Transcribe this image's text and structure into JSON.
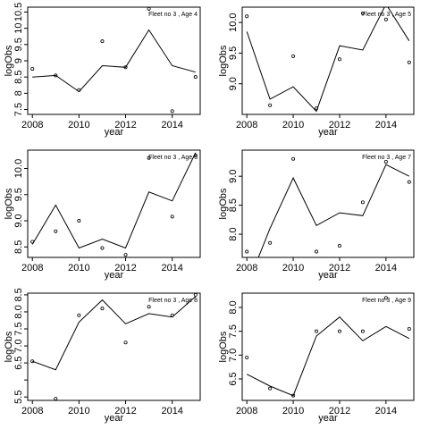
{
  "chart_data": [
    {
      "type": "scatter",
      "title": "Fleet no 3 , Age 4",
      "xlabel": "year",
      "ylabel": "logObs",
      "xlim": [
        2007.8,
        2015.2
      ],
      "ylim": [
        7.35,
        10.65
      ],
      "x_ticks": [
        2008,
        2010,
        2012,
        2014
      ],
      "y_ticks": [
        7.5,
        8.0,
        8.5,
        9.0,
        9.5,
        10.0,
        10.5
      ],
      "y_tick_labels": [
        "7.5",
        "8",
        "8.5",
        "9",
        "9.5",
        "10",
        "10.5"
      ],
      "series": [
        {
          "type": "line",
          "x": [
            2008,
            2009,
            2010,
            2011,
            2012,
            2013,
            2014,
            2015
          ],
          "y": [
            8.5,
            8.55,
            8.05,
            8.85,
            8.8,
            9.95,
            8.85,
            8.65
          ]
        },
        {
          "type": "scatter",
          "x": [
            2008,
            2009,
            2010,
            2011,
            2012,
            2013,
            2014,
            2015
          ],
          "y": [
            8.75,
            8.55,
            8.1,
            9.6,
            8.8,
            10.6,
            7.45,
            8.5
          ]
        }
      ]
    },
    {
      "type": "scatter",
      "title": "Fleet no 3 , Age 5",
      "xlabel": "year",
      "ylabel": "logObs",
      "xlim": [
        2007.8,
        2015.2
      ],
      "ylim": [
        8.5,
        10.25
      ],
      "x_ticks": [
        2008,
        2010,
        2012,
        2014
      ],
      "y_ticks": [
        9.0,
        9.5,
        10.0
      ],
      "y_tick_labels": [
        "9.0",
        "9.5",
        "10.0"
      ],
      "series": [
        {
          "type": "line",
          "x": [
            2008,
            2009,
            2010,
            2011,
            2012,
            2013,
            2014,
            2015
          ],
          "y": [
            9.85,
            8.75,
            8.95,
            8.55,
            9.62,
            9.55,
            10.3,
            9.7
          ]
        },
        {
          "type": "scatter",
          "x": [
            2008,
            2009,
            2010,
            2011,
            2012,
            2013,
            2014,
            2015
          ],
          "y": [
            10.1,
            8.65,
            9.45,
            8.6,
            9.4,
            10.15,
            10.05,
            9.35
          ]
        }
      ]
    },
    {
      "type": "scatter",
      "title": "Fleet no 3 , Age 6",
      "xlabel": "year",
      "ylabel": "logObs",
      "xlim": [
        2007.8,
        2015.2
      ],
      "ylim": [
        8.3,
        10.35
      ],
      "x_ticks": [
        2008,
        2010,
        2012,
        2014
      ],
      "y_ticks": [
        8.5,
        9.0,
        9.5,
        10.0
      ],
      "y_tick_labels": [
        "8.5",
        "9.0",
        "9.5",
        "10.0"
      ],
      "series": [
        {
          "type": "line",
          "x": [
            2008,
            2009,
            2010,
            2011,
            2012,
            2013,
            2014,
            2015
          ],
          "y": [
            8.55,
            9.3,
            8.48,
            8.65,
            8.48,
            9.55,
            9.38,
            10.3
          ]
        },
        {
          "type": "scatter",
          "x": [
            2008,
            2009,
            2010,
            2011,
            2012,
            2013,
            2014,
            2015
          ],
          "y": [
            8.6,
            8.8,
            9.0,
            8.48,
            8.35,
            10.2,
            9.08,
            10.25
          ]
        }
      ]
    },
    {
      "type": "scatter",
      "title": "Fleet no 3 , Age 7",
      "xlabel": "year",
      "ylabel": "logObs",
      "xlim": [
        2007.8,
        2015.2
      ],
      "ylim": [
        7.6,
        9.45
      ],
      "x_ticks": [
        2008,
        2010,
        2012,
        2014
      ],
      "y_ticks": [
        8.0,
        8.5,
        9.0
      ],
      "y_tick_labels": [
        "8.0",
        "8.5",
        "9.0"
      ],
      "series": [
        {
          "type": "line",
          "x": [
            2008,
            2009,
            2010,
            2011,
            2012,
            2013,
            2014,
            2015
          ],
          "y": [
            7.1,
            8.1,
            8.97,
            8.15,
            8.37,
            8.32,
            9.2,
            9.0
          ]
        },
        {
          "type": "scatter",
          "x": [
            2008,
            2009,
            2010,
            2011,
            2012,
            2013,
            2014,
            2015
          ],
          "y": [
            7.7,
            7.85,
            9.3,
            7.7,
            7.8,
            8.55,
            9.25,
            8.9
          ]
        }
      ]
    },
    {
      "type": "scatter",
      "title": "Fleet no 3 , Age 8",
      "xlabel": "year",
      "ylabel": "logObs",
      "xlim": [
        2007.8,
        2015.2
      ],
      "ylim": [
        5.4,
        8.55
      ],
      "x_ticks": [
        2008,
        2010,
        2012,
        2014
      ],
      "y_ticks": [
        5.5,
        6.0,
        6.5,
        7.0,
        7.5,
        8.0,
        8.5
      ],
      "y_tick_labels": [
        "5.5",
        "",
        "6.5",
        "7.0",
        "7.5",
        "8.0",
        "8.5"
      ],
      "series": [
        {
          "type": "line",
          "x": [
            2008,
            2009,
            2010,
            2011,
            2012,
            2013,
            2014,
            2015
          ],
          "y": [
            6.55,
            6.3,
            7.7,
            8.35,
            7.65,
            7.95,
            7.85,
            8.45
          ]
        },
        {
          "type": "scatter",
          "x": [
            2008,
            2009,
            2010,
            2011,
            2012,
            2013,
            2014,
            2015
          ],
          "y": [
            6.55,
            5.45,
            7.9,
            8.1,
            7.1,
            8.15,
            7.9,
            8.5
          ]
        }
      ]
    },
    {
      "type": "scatter",
      "title": "Fleet no 3 , Age 9",
      "xlabel": "year",
      "ylabel": "logObs",
      "xlim": [
        2007.8,
        2015.2
      ],
      "ylim": [
        6.05,
        8.3
      ],
      "x_ticks": [
        2008,
        2010,
        2012,
        2014
      ],
      "y_ticks": [
        6.5,
        7.0,
        7.5,
        8.0
      ],
      "y_tick_labels": [
        "6.5",
        "7.0",
        "7.5",
        "8.0"
      ],
      "series": [
        {
          "type": "line",
          "x": [
            2008,
            2009,
            2010,
            2011,
            2012,
            2013,
            2014,
            2015
          ],
          "y": [
            6.6,
            6.35,
            6.15,
            7.4,
            7.8,
            7.3,
            7.6,
            7.35
          ]
        },
        {
          "type": "scatter",
          "x": [
            2008,
            2009,
            2010,
            2011,
            2012,
            2013,
            2014,
            2015
          ],
          "y": [
            6.95,
            6.3,
            6.15,
            7.5,
            7.5,
            7.5,
            8.2,
            7.55
          ]
        }
      ]
    }
  ]
}
